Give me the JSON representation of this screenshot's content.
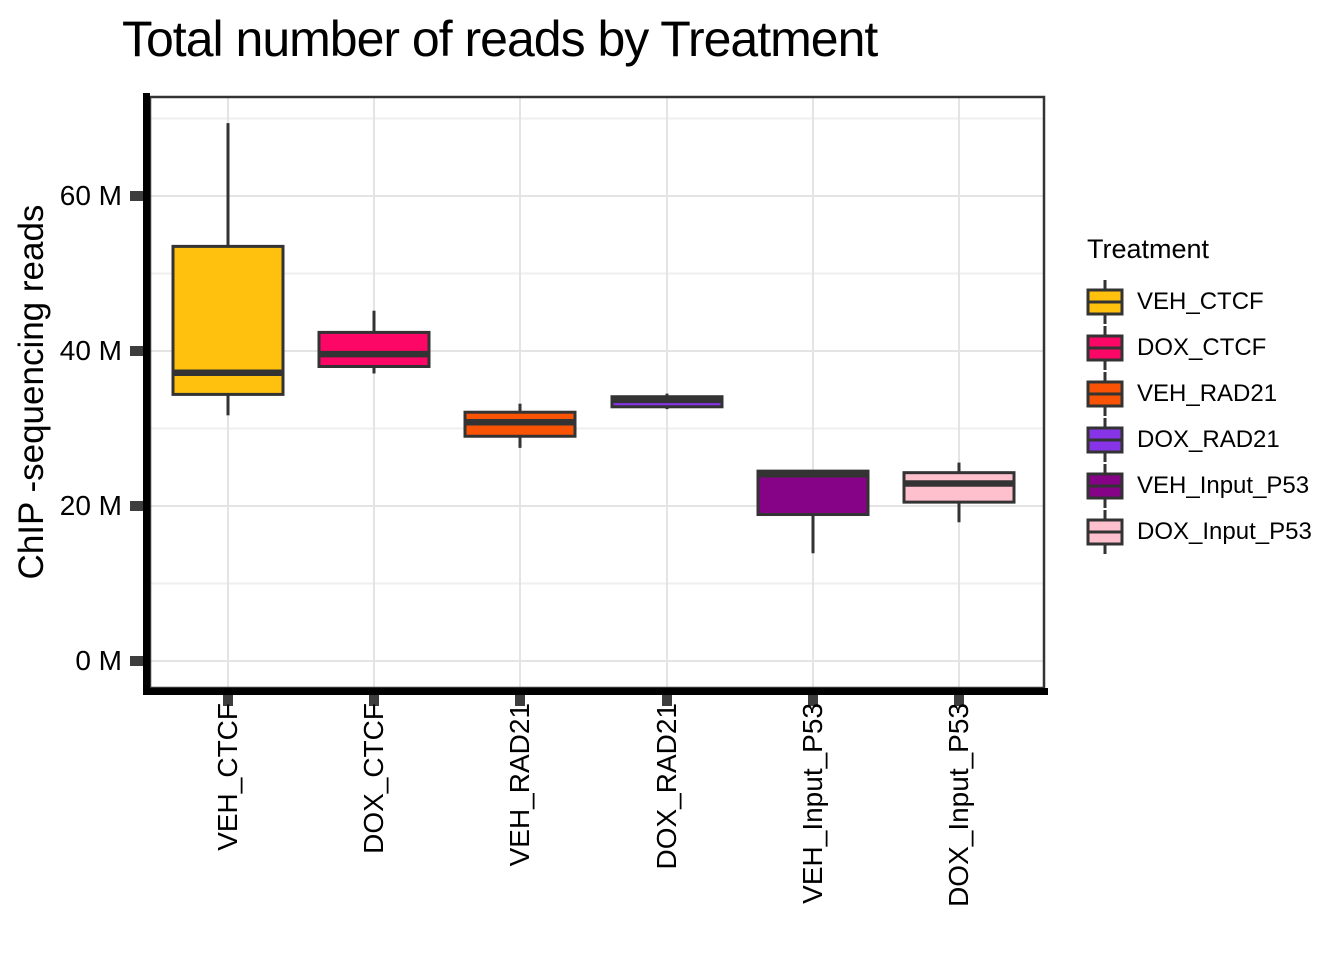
{
  "title": "Total number of reads by Treatment",
  "axes": {
    "y_label": "ChIP -sequencing reads",
    "x_label": "",
    "y_tick_labels": [
      "0 M",
      "20 M",
      "40 M",
      "60 M"
    ]
  },
  "legend": {
    "title": "Treatment",
    "items": [
      {
        "label": "VEH_CTCF",
        "color": "#FFC10E"
      },
      {
        "label": "DOX_CTCF",
        "color": "#FC0766"
      },
      {
        "label": "VEH_RAD21",
        "color": "#F95406"
      },
      {
        "label": "DOX_RAD21",
        "color": "#8733E8"
      },
      {
        "label": "VEH_Input_P53",
        "color": "#860387"
      },
      {
        "label": "DOX_Input_P53",
        "color": "#FFC0CD"
      }
    ]
  },
  "chart_data": {
    "type": "boxplot",
    "title": "Total number of reads by Treatment",
    "xlabel": "",
    "ylabel": "ChIP -sequencing reads",
    "unit": "M",
    "categories": [
      "VEH_CTCF",
      "DOX_CTCF",
      "VEH_RAD21",
      "DOX_RAD21",
      "VEH_Input_P53",
      "DOX_Input_P53"
    ],
    "series": [
      {
        "name": "VEH_CTCF",
        "color": "#FFC10E",
        "min": 31.7,
        "q1": 34.4,
        "median": 37.2,
        "q3": 53.5,
        "max": 69.4
      },
      {
        "name": "DOX_CTCF",
        "color": "#FC0766",
        "min": 37.1,
        "q1": 38.0,
        "median": 39.6,
        "q3": 42.4,
        "max": 45.2
      },
      {
        "name": "VEH_RAD21",
        "color": "#F95406",
        "min": 27.5,
        "q1": 29.0,
        "median": 30.8,
        "q3": 32.1,
        "max": 33.2
      },
      {
        "name": "DOX_RAD21",
        "color": "#8733E8",
        "min": 32.5,
        "q1": 32.8,
        "median": 33.7,
        "q3": 34.1,
        "max": 34.5
      },
      {
        "name": "VEH_Input_P53",
        "color": "#860387",
        "min": 13.9,
        "q1": 18.9,
        "median": 24.1,
        "q3": 24.5,
        "max": 24.6
      },
      {
        "name": "DOX_Input_P53",
        "color": "#FFC0CD",
        "min": 17.9,
        "q1": 20.5,
        "median": 22.9,
        "q3": 24.3,
        "max": 25.6
      }
    ],
    "y_ticks": [
      {
        "value": 0,
        "label": "0 M"
      },
      {
        "value": 20,
        "label": "20 M"
      },
      {
        "value": 40,
        "label": "40 M"
      },
      {
        "value": 60,
        "label": "60 M"
      }
    ],
    "y_minor_gridlines": [
      10,
      30,
      50,
      70
    ],
    "ylim": [
      0,
      72.8
    ],
    "grid": true,
    "legend_position": "right",
    "colors": {
      "box_border": "#333333",
      "axis_line": "#000000",
      "tick_mark": "#3d3d3d",
      "panel_border": "#333333",
      "grid_major": "#e4e4e4",
      "grid_minor": "#efefef",
      "background": "#ffffff"
    }
  }
}
